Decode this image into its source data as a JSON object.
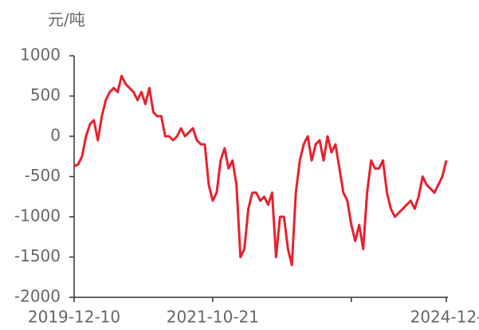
{
  "chart_data": {
    "type": "line",
    "y_label": "元/吨",
    "categories": [
      "2019-12-10",
      null,
      null,
      null,
      null,
      null,
      null,
      null,
      null,
      null,
      null,
      null,
      null,
      null,
      null,
      null,
      null,
      null,
      null,
      null,
      null,
      null,
      null,
      null,
      null,
      null,
      null,
      null,
      null,
      null,
      null,
      null,
      null,
      null,
      null,
      "2021-10-21",
      null,
      null,
      null,
      null,
      null,
      null,
      null,
      null,
      null,
      null,
      null,
      null,
      null,
      null,
      null,
      null,
      null,
      null,
      null,
      null,
      null,
      null,
      null,
      null,
      null,
      null,
      null,
      null,
      null,
      null,
      null,
      null,
      null,
      null,
      null,
      null,
      null,
      null,
      null,
      null,
      null,
      null,
      null,
      null,
      null,
      null,
      null,
      null,
      null,
      null,
      null,
      null,
      null,
      null,
      null,
      null,
      null,
      null,
      "2024-12-"
    ],
    "series": [
      {
        "color": "#e8202e",
        "values": [
          -370,
          -350,
          -250,
          0,
          150,
          200,
          -50,
          250,
          450,
          550,
          600,
          550,
          750,
          650,
          600,
          550,
          450,
          550,
          400,
          600,
          300,
          250,
          250,
          0,
          0,
          -50,
          0,
          100,
          0,
          50,
          100,
          -50,
          -100,
          -100,
          -600,
          -800,
          -700,
          -300,
          -150,
          -400,
          -300,
          -600,
          -1500,
          -1400,
          -900,
          -700,
          -700,
          -800,
          -750,
          -850,
          -700,
          -1500,
          -1000,
          -1000,
          -1400,
          -1600,
          -700,
          -300,
          -100,
          0,
          -300,
          -100,
          -50,
          -300,
          0,
          -200,
          -100,
          -400,
          -700,
          -800,
          -1100,
          -1300,
          -1100,
          -1400,
          -700,
          -300,
          -400,
          -400,
          -300,
          -700,
          -900,
          -1000,
          -950,
          -900,
          -850,
          -800,
          -900,
          -750,
          -500,
          -600,
          -650,
          -700,
          -600,
          -500,
          -300
        ]
      }
    ],
    "xticks": [
      0,
      35,
      70,
      94
    ],
    "ylim": [
      -2000,
      1000
    ],
    "yticks": [
      1000,
      500,
      0,
      -500,
      -1000,
      -1500,
      -2000
    ]
  }
}
